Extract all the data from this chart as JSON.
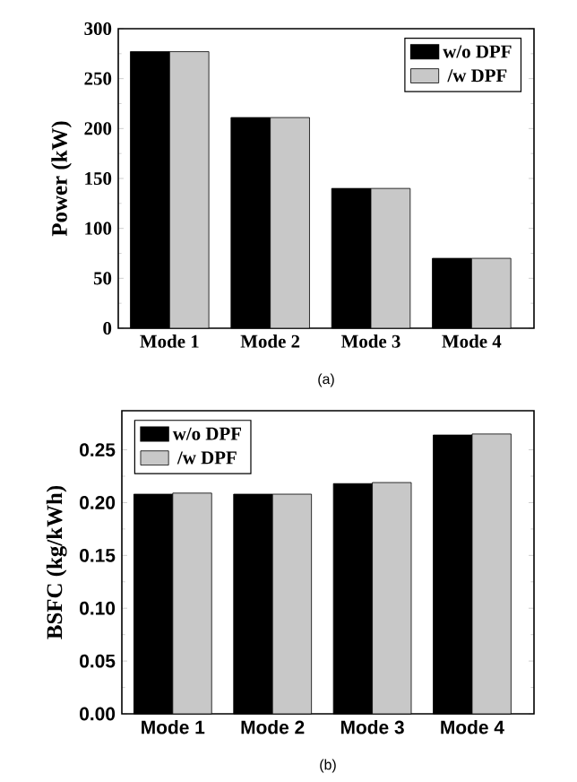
{
  "chart_data": [
    {
      "type": "bar",
      "categories": [
        "Mode 1",
        "Mode 2",
        "Mode 3",
        "Mode 4"
      ],
      "ylabel": "Power (kW)",
      "ylim": [
        0,
        300
      ],
      "yticks": [
        0,
        50,
        100,
        150,
        200,
        250,
        300
      ],
      "legend": "top right",
      "annotations": [
        "(a)"
      ],
      "series": [
        {
          "name": "w/o DPF",
          "color": "#000000",
          "values": [
            277,
            211,
            140,
            70
          ]
        },
        {
          "name": "/w DPF",
          "color": "#c8c8c8",
          "values": [
            277,
            211,
            140,
            70
          ]
        }
      ]
    },
    {
      "type": "bar",
      "categories": [
        "Mode 1",
        "Mode 2",
        "Mode 3",
        "Mode 4"
      ],
      "ylabel": "BSFC (kg/kWh)",
      "ylim": [
        0,
        0.287
      ],
      "yticks": [
        {
          "value": 0,
          "label": "0.00"
        },
        {
          "value": 0.05,
          "label": "0.05"
        },
        {
          "value": 0.1,
          "label": "0.10"
        },
        {
          "value": 0.15,
          "label": "0.15"
        },
        {
          "value": 0.2,
          "label": "0.20"
        },
        {
          "value": 0.25,
          "label": "0.25"
        }
      ],
      "legend": "top left",
      "annotations": [
        "(b)"
      ],
      "series": [
        {
          "name": "w/o DPF",
          "color": "#000000",
          "values": [
            0.208,
            0.208,
            0.218,
            0.264
          ]
        },
        {
          "name": "/w DPF",
          "color": "#c8c8c8",
          "values": [
            0.209,
            0.208,
            0.219,
            0.265
          ]
        }
      ]
    }
  ]
}
